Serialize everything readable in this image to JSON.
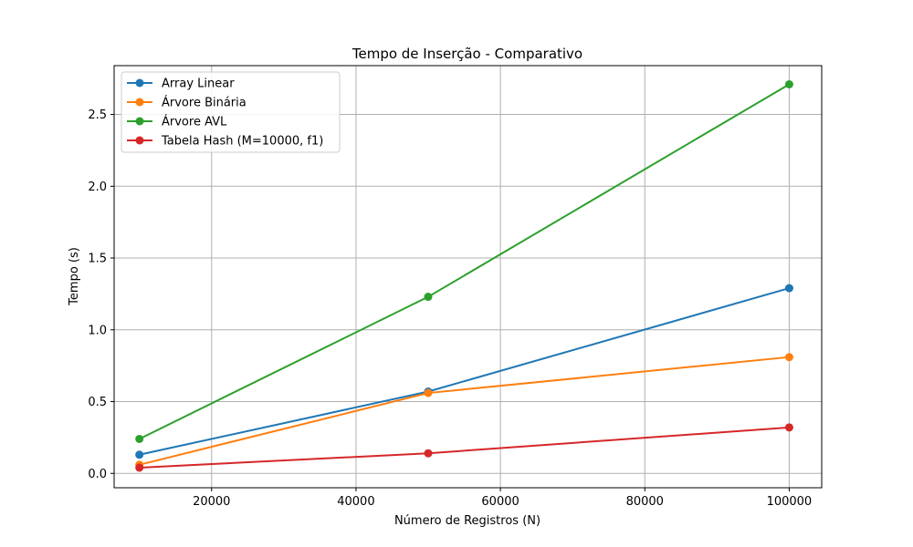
{
  "chart_data": {
    "type": "line",
    "title": "Tempo de Inserção - Comparativo",
    "xlabel": "Número de Registros (N)",
    "ylabel": "Tempo (s)",
    "x": [
      10000,
      50000,
      100000
    ],
    "xlim": [
      6500,
      104500
    ],
    "ylim": [
      -0.1,
      2.84
    ],
    "xticks": [
      20000,
      40000,
      60000,
      80000,
      100000
    ],
    "yticks": [
      0.0,
      0.5,
      1.0,
      1.5,
      2.0,
      2.5
    ],
    "xtick_labels": [
      "20000",
      "40000",
      "60000",
      "80000",
      "100000"
    ],
    "ytick_labels": [
      "0.0",
      "0.5",
      "1.0",
      "1.5",
      "2.0",
      "2.5"
    ],
    "grid": true,
    "legend_position": "top-left",
    "series": [
      {
        "name": "Array Linear",
        "color": "#1f77b4",
        "values": [
          0.13,
          0.57,
          1.29
        ]
      },
      {
        "name": "Árvore Binária",
        "color": "#ff7f0e",
        "values": [
          0.06,
          0.56,
          0.81
        ]
      },
      {
        "name": "Árvore AVL",
        "color": "#2ca02c",
        "values": [
          0.24,
          1.23,
          2.71
        ]
      },
      {
        "name": "Tabela Hash (M=10000, f1)",
        "color": "#d62728",
        "values": [
          0.04,
          0.14,
          0.32
        ]
      }
    ]
  }
}
